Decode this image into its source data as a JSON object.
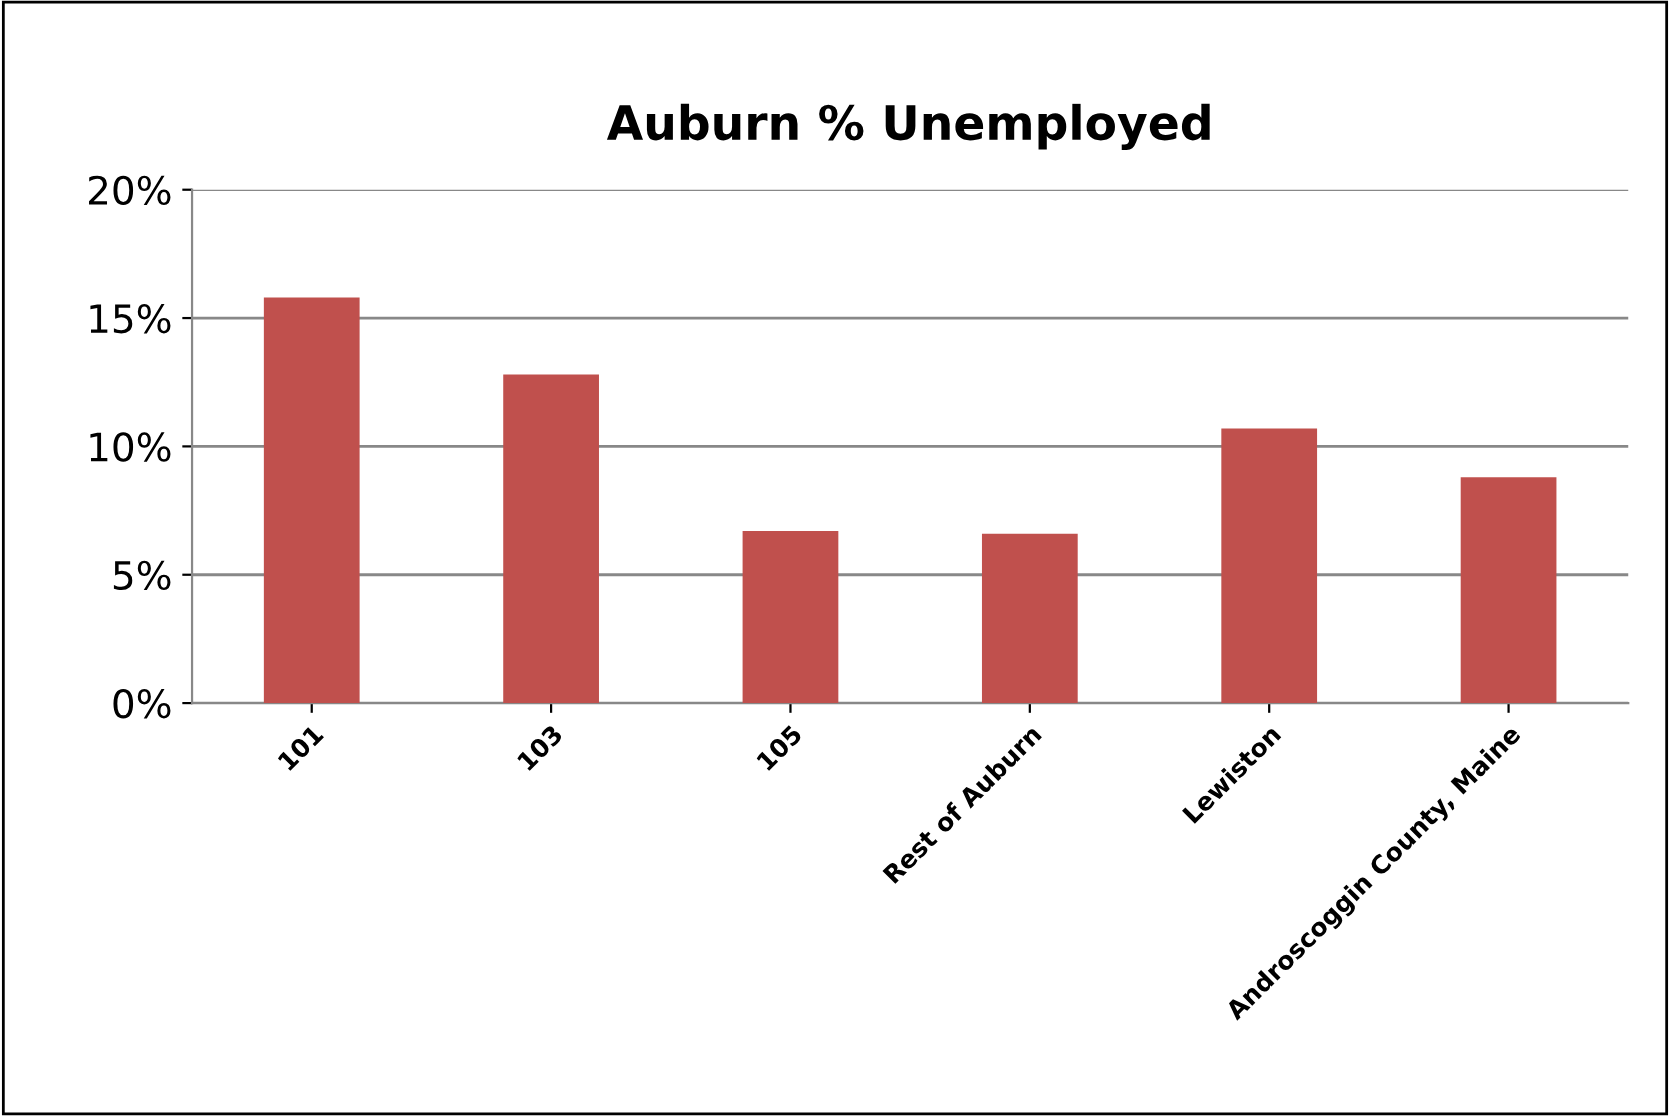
{
  "chart_data": {
    "type": "bar",
    "title": "Auburn % Unemployed",
    "categories": [
      "101",
      "103",
      "105",
      "Rest of Auburn",
      "Lewiston",
      "Androscoggin County, Maine"
    ],
    "values": [
      15.8,
      12.8,
      6.7,
      6.6,
      10.7,
      8.8
    ],
    "color": "#c0504d",
    "ylim": [
      0,
      20
    ],
    "yticks": [
      {
        "value": 0,
        "label": "0%"
      },
      {
        "value": 5,
        "label": "5%"
      },
      {
        "value": 10,
        "label": "10%"
      },
      {
        "value": 15,
        "label": "15%"
      },
      {
        "value": 20,
        "label": "20%"
      }
    ],
    "grid": "y"
  }
}
